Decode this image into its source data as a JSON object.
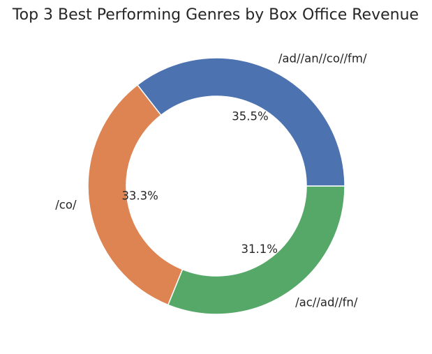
{
  "chart_data": {
    "type": "pie",
    "style": "donut",
    "title": "Top 3 Best Performing Genres by Box Office Revenue",
    "categories": [
      "/ad//an//co//fm/",
      "/co/",
      "/ac//ad//fn/"
    ],
    "values": [
      35.5,
      33.3,
      31.1
    ],
    "value_labels": [
      "35.5%",
      "33.3%",
      "31.1%"
    ],
    "colors": [
      "#4c72b0",
      "#dd8452",
      "#55a868"
    ],
    "start_angle_deg": 0,
    "direction": "counterclockwise"
  }
}
